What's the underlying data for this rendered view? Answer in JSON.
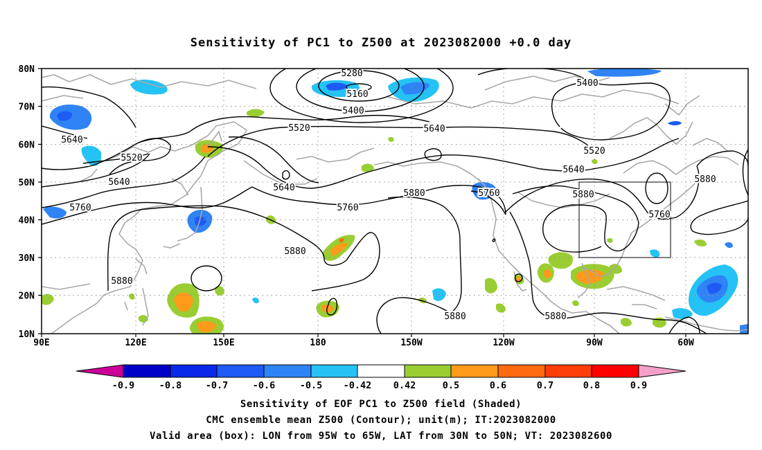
{
  "title": "Sensitivity of PC1 to Z500 at 2023082000 +0.0 day",
  "lat_labels": [
    "80N",
    "70N",
    "60N",
    "50N",
    "40N",
    "30N",
    "20N",
    "10N"
  ],
  "lon_labels": [
    "90E",
    "120E",
    "150E",
    "180",
    "150W",
    "120W",
    "90W",
    "60W"
  ],
  "contour_labels": [
    "5280",
    "5160",
    "5400",
    "5400",
    "5520",
    "5640",
    "5640",
    "5520",
    "5520",
    "5640",
    "5640",
    "5640",
    "5760",
    "5760",
    "5880",
    "5760",
    "5880",
    "5880",
    "5760",
    "5880",
    "5880",
    "5880",
    "5880"
  ],
  "colorbar": {
    "labels": [
      "-0.9",
      "-0.8",
      "-0.7",
      "-0.6",
      "-0.5",
      "-0.42",
      "0.42",
      "0.5",
      "0.6",
      "0.7",
      "0.8",
      "0.9"
    ],
    "colors": [
      "#cc0099",
      "#0000c8",
      "#0a28ea",
      "#1e5bf5",
      "#2f83f5",
      "#25c2f5",
      "#ffffff",
      "#9acd32",
      "#ff9a1a",
      "#ff6a10",
      "#ff3e0a",
      "#ff0000",
      "#f5a0c8"
    ]
  },
  "caption": [
    "Sensitivity of EOF PC1 to Z500 field (Shaded)",
    "CMC ensemble mean Z500 (Contour); unit(m); IT:2023082000",
    "Valid area (box): LON from 95W to 65W, LAT from 30N to 50N; VT: 2023082600"
  ],
  "valid_box": {
    "lon_west": "95W",
    "lon_east": "65W",
    "lat_south": "30N",
    "lat_north": "50N"
  }
}
